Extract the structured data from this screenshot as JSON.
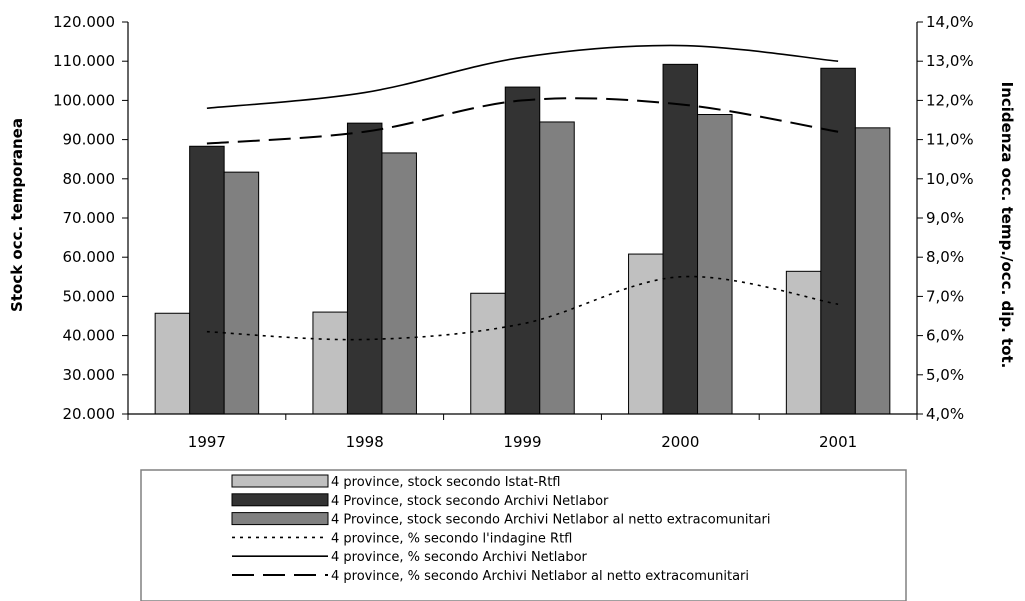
{
  "chart_data": {
    "type": "bar",
    "categories": [
      "1997",
      "1998",
      "1999",
      "2000",
      "2001"
    ],
    "ylabel": "Stock occ. temporanea",
    "y2label": "Incidenza occ. temp./occ. dip. tot.",
    "ylim": [
      20000,
      120000
    ],
    "y2lim": [
      4.0,
      14.0
    ],
    "y_ticks": [
      "20.000",
      "30.000",
      "40.000",
      "50.000",
      "60.000",
      "70.000",
      "80.000",
      "90.000",
      "100.000",
      "110.000",
      "120.000"
    ],
    "y2_ticks": [
      "4,0%",
      "5,0%",
      "6,0%",
      "7,0%",
      "8,0%",
      "9,0%",
      "10,0%",
      "11,0%",
      "12,0%",
      "13,0%",
      "14,0%"
    ],
    "grid": false,
    "legend_position": "bottom",
    "bar_series": [
      {
        "name": "4 province, stock secondo Istat-Rtfl",
        "color": "#c0c0c0",
        "values": [
          45700,
          46000,
          50800,
          60800,
          56400
        ]
      },
      {
        "name": "4 Province, stock secondo Archivi Netlabor",
        "color": "#333333",
        "values": [
          88300,
          94200,
          103400,
          109200,
          108200
        ]
      },
      {
        "name": "4 Province, stock secondo Archivi Netlabor al netto extracomunitari",
        "color": "#808080",
        "values": [
          81700,
          86600,
          94500,
          96400,
          93000
        ]
      }
    ],
    "line_series": [
      {
        "name": "4 province, % secondo l'indagine Rtfl",
        "style": "dotted",
        "axis": "right",
        "values": [
          6.1,
          5.9,
          6.3,
          7.5,
          6.8
        ]
      },
      {
        "name": "4 province, % secondo Archivi Netlabor",
        "style": "solid",
        "axis": "right",
        "values": [
          11.8,
          12.2,
          13.1,
          13.4,
          13.0
        ]
      },
      {
        "name": "4 province, % secondo Archivi Netlabor al netto extracomunitari",
        "style": "dashed",
        "axis": "right",
        "values": [
          10.9,
          11.2,
          12.0,
          11.9,
          11.2
        ]
      }
    ]
  }
}
